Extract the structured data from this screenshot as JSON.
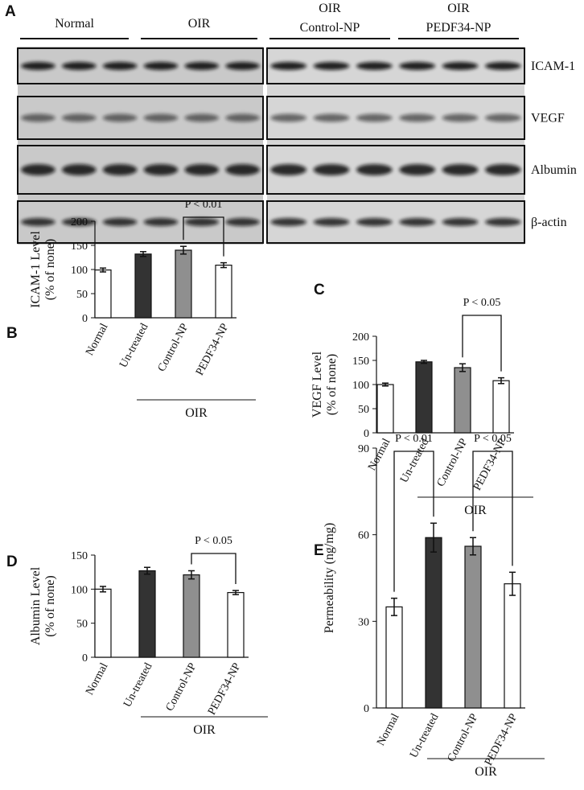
{
  "blot": {
    "panel": "A",
    "groups": [
      [
        "Normal"
      ],
      [
        "OIR"
      ],
      [
        "OIR",
        "Control-NP"
      ],
      [
        "OIR",
        "PEDF34-NP"
      ]
    ],
    "rows": [
      "ICAM-1",
      "VEGF",
      "Albumin",
      "β-actin"
    ]
  },
  "chart_data": [
    {
      "type": "bar",
      "panel": "B",
      "ylabel": [
        "ICAM-1 Level",
        "(% of none)"
      ],
      "categories": [
        "Normal",
        "Un-treated",
        "Control-NP",
        "PEDF34-NP"
      ],
      "values": [
        99,
        132,
        140,
        109
      ],
      "errors": [
        4,
        5,
        8,
        5
      ],
      "colors": [
        "#ffffff",
        "#333333",
        "#8f8f8f",
        "#ffffff"
      ],
      "ylim": [
        0,
        200
      ],
      "yticks": [
        0,
        50,
        100,
        150,
        200
      ],
      "group_label": "OIR",
      "comparisons": [
        {
          "between": [
            "Control-NP",
            "PEDF34-NP"
          ],
          "label": "P < 0.01"
        }
      ]
    },
    {
      "type": "bar",
      "panel": "C",
      "ylabel": [
        "VEGF Level",
        "(% of none)"
      ],
      "categories": [
        "Normal",
        "Un-treated",
        "Control-NP",
        "PEDF34-NP"
      ],
      "values": [
        100,
        147,
        135,
        108
      ],
      "errors": [
        3,
        3,
        8,
        6
      ],
      "colors": [
        "#ffffff",
        "#333333",
        "#8f8f8f",
        "#ffffff"
      ],
      "ylim": [
        0,
        200
      ],
      "yticks": [
        0,
        50,
        100,
        150,
        200
      ],
      "group_label": "OIR",
      "comparisons": [
        {
          "between": [
            "Control-NP",
            "PEDF34-NP"
          ],
          "label": "P < 0.05"
        }
      ]
    },
    {
      "type": "bar",
      "panel": "D",
      "ylabel": [
        "Albumin  Level",
        "(% of none)"
      ],
      "categories": [
        "Normal",
        "Un-treated",
        "Control-NP",
        "PEDF34-NP"
      ],
      "values": [
        100,
        127,
        121,
        95
      ],
      "errors": [
        4,
        5,
        6,
        3
      ],
      "colors": [
        "#ffffff",
        "#333333",
        "#8f8f8f",
        "#ffffff"
      ],
      "ylim": [
        0,
        150
      ],
      "yticks": [
        0,
        50,
        100,
        150
      ],
      "group_label": "OIR",
      "comparisons": [
        {
          "between": [
            "Control-NP",
            "PEDF34-NP"
          ],
          "label": "P < 0.05"
        }
      ]
    },
    {
      "type": "bar",
      "panel": "E",
      "ylabel": [
        "Permeability  (ng/mg)"
      ],
      "categories": [
        "Normal",
        "Un-treated",
        "Control-NP",
        "PEDF34-NP"
      ],
      "values": [
        35,
        59,
        56,
        43
      ],
      "errors": [
        3,
        5,
        3,
        4
      ],
      "colors": [
        "#ffffff",
        "#333333",
        "#8f8f8f",
        "#ffffff"
      ],
      "ylim": [
        0,
        90
      ],
      "yticks": [
        0,
        30,
        60,
        90
      ],
      "group_label": "OIR",
      "comparisons": [
        {
          "between": [
            "Normal",
            "Un-treated"
          ],
          "label": "P < 0.01"
        },
        {
          "between": [
            "Control-NP",
            "PEDF34-NP"
          ],
          "label": "P < 0.05"
        }
      ]
    }
  ]
}
